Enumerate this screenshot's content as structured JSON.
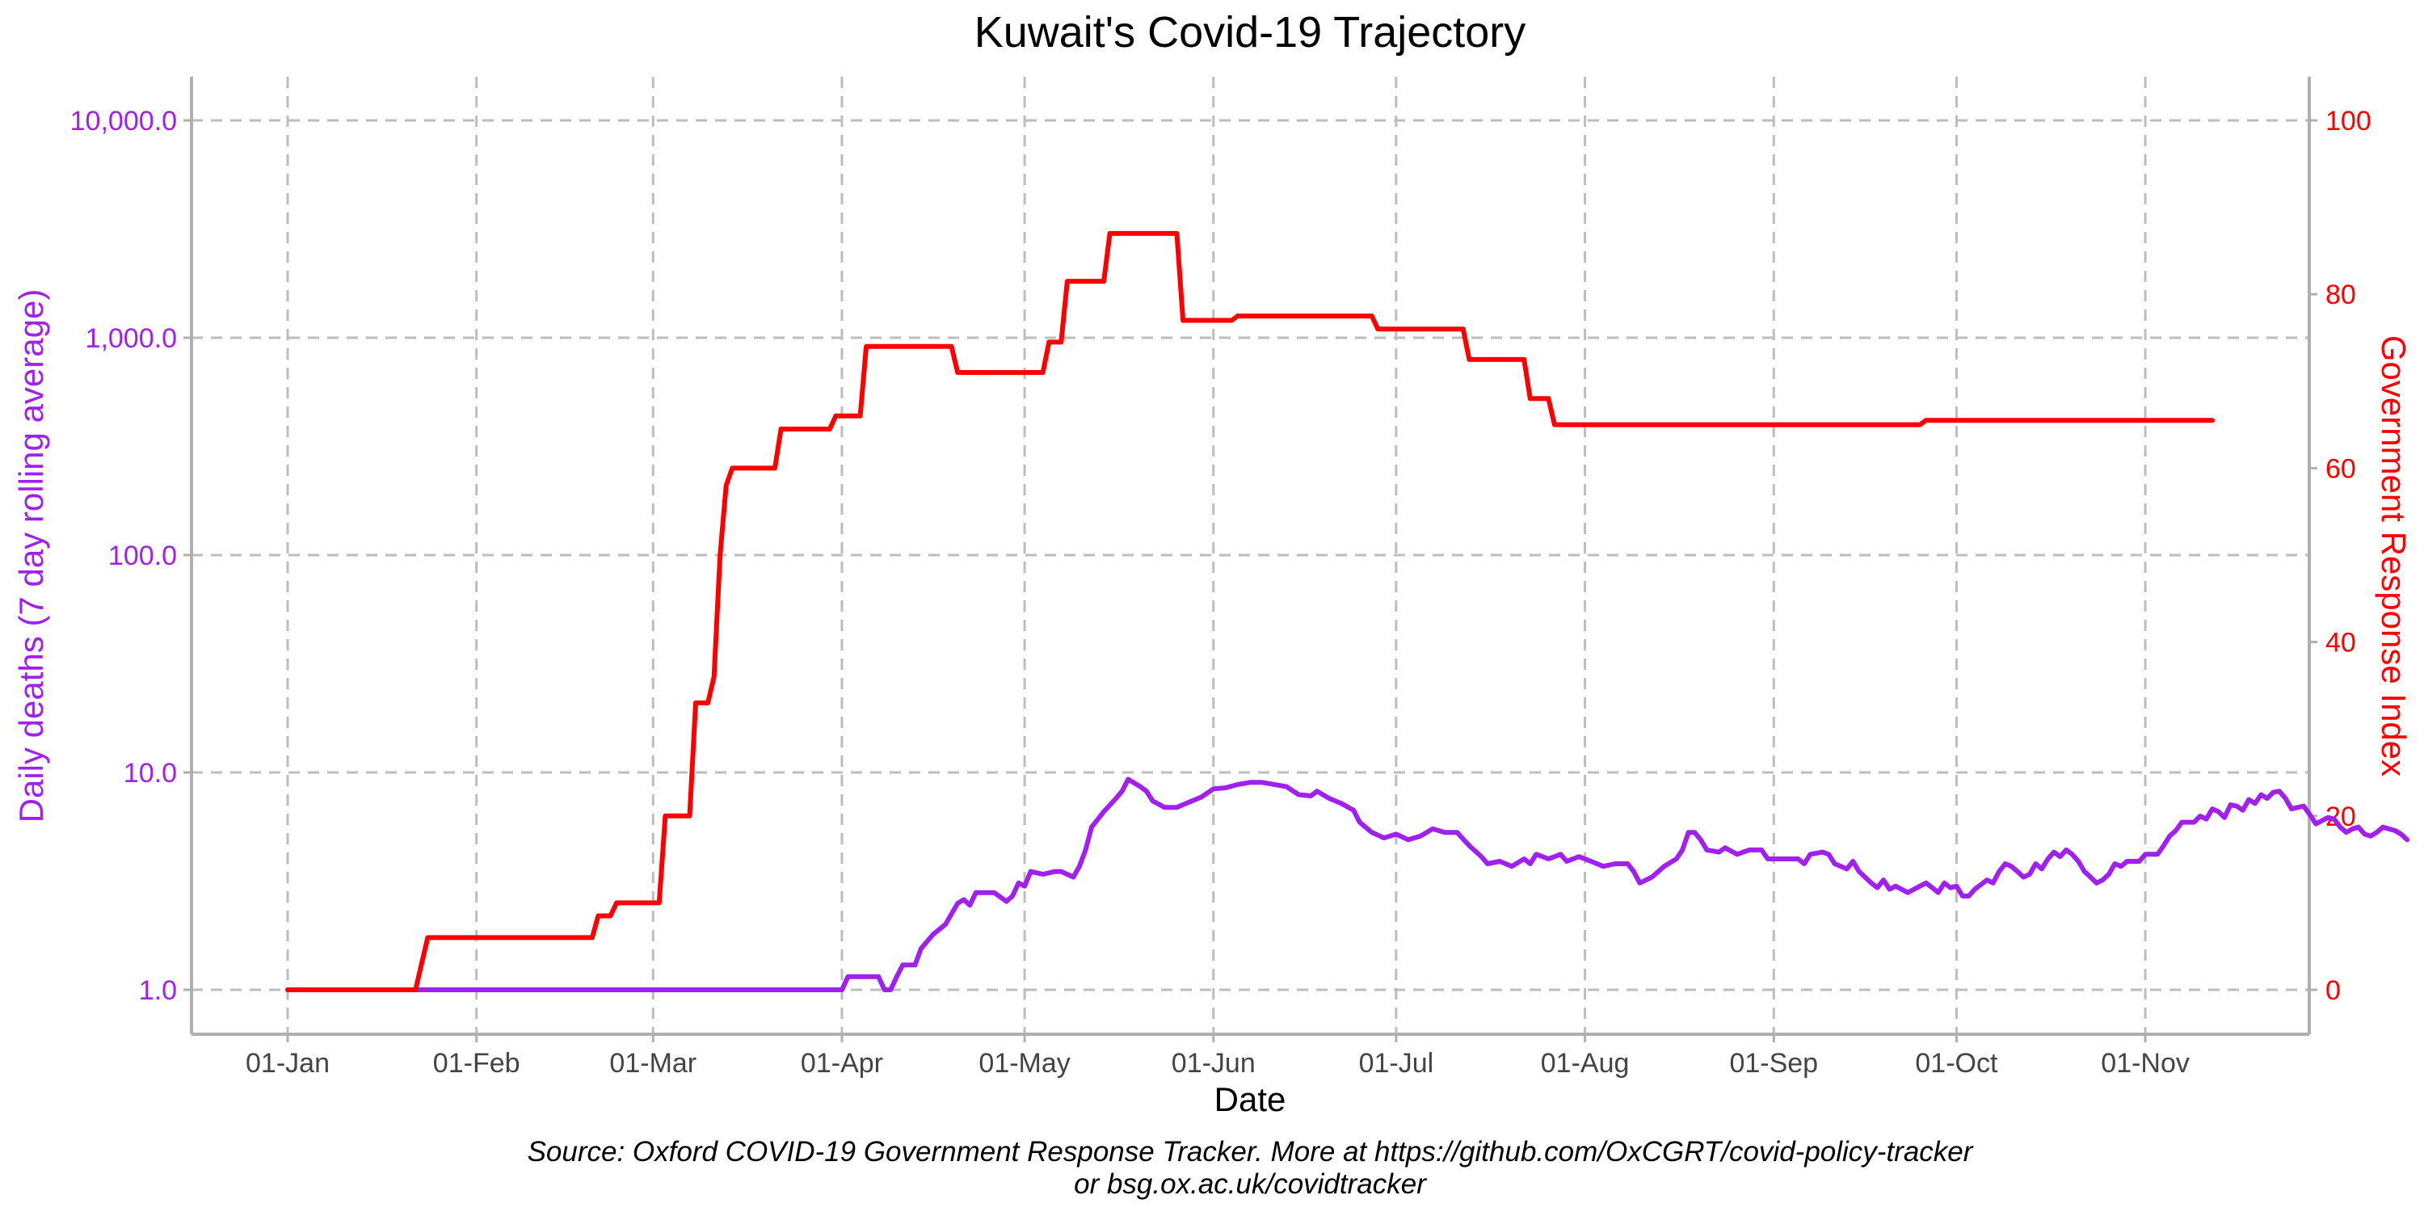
{
  "chart_data": {
    "type": "line",
    "title": "Kuwait's Covid-19 Trajectory",
    "xlabel": "Date",
    "ylabel_left": "Daily deaths (7 day rolling average)",
    "ylabel_right": "Government Response Index",
    "caption_line1": "Source: Oxford COVID-19 Government Response Tracker. More at https://github.com/OxCGRT/covid-policy-tracker",
    "caption_line2": "or bsg.ox.ac.uk/covidtracker",
    "x_ticks": [
      {
        "label": "01-Jan",
        "day": 0
      },
      {
        "label": "01-Feb",
        "day": 31
      },
      {
        "label": "01-Mar",
        "day": 60
      },
      {
        "label": "01-Apr",
        "day": 91
      },
      {
        "label": "01-May",
        "day": 121
      },
      {
        "label": "01-Jun",
        "day": 152
      },
      {
        "label": "01-Jul",
        "day": 182
      },
      {
        "label": "01-Aug",
        "day": 213
      },
      {
        "label": "01-Sep",
        "day": 244
      },
      {
        "label": "01-Oct",
        "day": 274
      },
      {
        "label": "01-Nov",
        "day": 305
      }
    ],
    "y_left_scale": "log10",
    "y_left_ticks": [
      {
        "label": "1.0",
        "value": 1
      },
      {
        "label": "10.0",
        "value": 10
      },
      {
        "label": "100.0",
        "value": 100
      },
      {
        "label": "1,000.0",
        "value": 1000
      },
      {
        "label": "10,000.0",
        "value": 10000
      }
    ],
    "y_right_ticks": [
      {
        "label": "0",
        "value": 0
      },
      {
        "label": "20",
        "value": 20
      },
      {
        "label": "40",
        "value": 40
      },
      {
        "label": "60",
        "value": 60
      },
      {
        "label": "80",
        "value": 80
      },
      {
        "label": "100",
        "value": 100
      }
    ],
    "grid": true,
    "series": [
      {
        "axis": "right",
        "color": "#ff0000",
        "points": [
          [
            0,
            0
          ],
          [
            21,
            0
          ],
          [
            22,
            3
          ],
          [
            23,
            6
          ],
          [
            50,
            6
          ],
          [
            51,
            8.5
          ],
          [
            53,
            8.5
          ],
          [
            54,
            10
          ],
          [
            61,
            10
          ],
          [
            62,
            20
          ],
          [
            66,
            20
          ],
          [
            67,
            33
          ],
          [
            69,
            33
          ],
          [
            70,
            36
          ],
          [
            71,
            50
          ],
          [
            72,
            58
          ],
          [
            73,
            60
          ],
          [
            80,
            60
          ],
          [
            81,
            64.5
          ],
          [
            89,
            64.5
          ],
          [
            90,
            66
          ],
          [
            94,
            66
          ],
          [
            95,
            74
          ],
          [
            109,
            74
          ],
          [
            110,
            71
          ],
          [
            124,
            71
          ],
          [
            125,
            74.5
          ],
          [
            127,
            74.5
          ],
          [
            128,
            81.5
          ],
          [
            134,
            81.5
          ],
          [
            135,
            87
          ],
          [
            146,
            87
          ],
          [
            147,
            77
          ],
          [
            155,
            77
          ],
          [
            156,
            77.5
          ],
          [
            178,
            77.5
          ],
          [
            179,
            76
          ],
          [
            193,
            76
          ],
          [
            194,
            72.5
          ],
          [
            203,
            72.5
          ],
          [
            204,
            68
          ],
          [
            207,
            68
          ],
          [
            208,
            65
          ],
          [
            268,
            65
          ],
          [
            269,
            65.5
          ],
          [
            316,
            65.5
          ]
        ]
      },
      {
        "axis": "left",
        "color": "#a020f0",
        "points": [
          [
            0,
            1
          ],
          [
            91,
            1
          ],
          [
            92,
            1.15
          ],
          [
            97,
            1.15
          ],
          [
            98,
            1
          ],
          [
            99,
            1
          ],
          [
            100,
            1.15
          ],
          [
            101,
            1.3
          ],
          [
            103,
            1.3
          ],
          [
            104,
            1.55
          ],
          [
            106,
            1.8
          ],
          [
            108,
            2.0
          ],
          [
            110,
            2.5
          ],
          [
            111,
            2.6
          ],
          [
            112,
            2.45
          ],
          [
            113,
            2.8
          ],
          [
            116,
            2.8
          ],
          [
            118,
            2.55
          ],
          [
            119,
            2.7
          ],
          [
            120,
            3.1
          ],
          [
            121,
            3.0
          ],
          [
            122,
            3.5
          ],
          [
            124,
            3.4
          ],
          [
            126,
            3.5
          ],
          [
            127,
            3.5
          ],
          [
            129,
            3.3
          ],
          [
            130,
            3.7
          ],
          [
            131,
            4.4
          ],
          [
            132,
            5.6
          ],
          [
            134,
            6.6
          ],
          [
            136,
            7.6
          ],
          [
            137,
            8.2
          ],
          [
            138,
            9.3
          ],
          [
            140,
            8.6
          ],
          [
            141,
            8.2
          ],
          [
            142,
            7.4
          ],
          [
            144,
            6.9
          ],
          [
            146,
            6.9
          ],
          [
            148,
            7.3
          ],
          [
            150,
            7.7
          ],
          [
            152,
            8.4
          ],
          [
            154,
            8.5
          ],
          [
            156,
            8.8
          ],
          [
            158,
            9.0
          ],
          [
            160,
            9.0
          ],
          [
            162,
            8.8
          ],
          [
            164,
            8.6
          ],
          [
            166,
            7.9
          ],
          [
            168,
            7.8
          ],
          [
            169,
            8.2
          ],
          [
            171,
            7.6
          ],
          [
            173,
            7.2
          ],
          [
            175,
            6.7
          ],
          [
            176,
            5.9
          ],
          [
            178,
            5.3
          ],
          [
            180,
            5.0
          ],
          [
            182,
            5.2
          ],
          [
            184,
            4.9
          ],
          [
            186,
            5.1
          ],
          [
            188,
            5.5
          ],
          [
            190,
            5.3
          ],
          [
            192,
            5.3
          ],
          [
            194,
            4.6
          ],
          [
            196,
            4.1
          ],
          [
            197,
            3.8
          ],
          [
            199,
            3.9
          ],
          [
            201,
            3.7
          ],
          [
            203,
            4.0
          ],
          [
            204,
            3.8
          ],
          [
            205,
            4.2
          ],
          [
            207,
            4.0
          ],
          [
            209,
            4.2
          ],
          [
            210,
            3.9
          ],
          [
            212,
            4.1
          ],
          [
            214,
            3.9
          ],
          [
            216,
            3.7
          ],
          [
            218,
            3.8
          ],
          [
            220,
            3.8
          ],
          [
            221,
            3.5
          ],
          [
            222,
            3.1
          ],
          [
            224,
            3.3
          ],
          [
            226,
            3.7
          ],
          [
            228,
            4.0
          ],
          [
            229,
            4.4
          ],
          [
            230,
            5.3
          ],
          [
            231,
            5.3
          ],
          [
            232,
            4.9
          ],
          [
            233,
            4.4
          ],
          [
            235,
            4.3
          ],
          [
            236,
            4.5
          ],
          [
            238,
            4.2
          ],
          [
            240,
            4.4
          ],
          [
            242,
            4.4
          ],
          [
            243,
            4.0
          ],
          [
            246,
            4.0
          ],
          [
            248,
            4.0
          ],
          [
            249,
            3.8
          ],
          [
            250,
            4.2
          ],
          [
            252,
            4.3
          ],
          [
            253,
            4.2
          ],
          [
            254,
            3.8
          ],
          [
            256,
            3.6
          ],
          [
            257,
            3.9
          ],
          [
            258,
            3.5
          ],
          [
            260,
            3.1
          ],
          [
            261,
            2.95
          ],
          [
            262,
            3.2
          ],
          [
            263,
            2.9
          ],
          [
            264,
            3.0
          ],
          [
            266,
            2.8
          ],
          [
            268,
            3.0
          ],
          [
            269,
            3.1
          ],
          [
            270,
            2.95
          ],
          [
            271,
            2.8
          ],
          [
            272,
            3.1
          ],
          [
            273,
            2.95
          ],
          [
            274,
            3.0
          ],
          [
            275,
            2.7
          ],
          [
            276,
            2.7
          ],
          [
            277,
            2.9
          ],
          [
            279,
            3.2
          ],
          [
            280,
            3.1
          ],
          [
            281,
            3.5
          ],
          [
            282,
            3.8
          ],
          [
            283,
            3.7
          ],
          [
            284,
            3.5
          ],
          [
            285,
            3.3
          ],
          [
            286,
            3.4
          ],
          [
            287,
            3.8
          ],
          [
            288,
            3.6
          ],
          [
            289,
            4.0
          ],
          [
            290,
            4.3
          ],
          [
            291,
            4.1
          ],
          [
            292,
            4.4
          ],
          [
            293,
            4.2
          ],
          [
            294,
            3.9
          ],
          [
            295,
            3.5
          ],
          [
            296,
            3.3
          ],
          [
            297,
            3.1
          ],
          [
            298,
            3.2
          ],
          [
            299,
            3.4
          ],
          [
            300,
            3.8
          ],
          [
            301,
            3.7
          ],
          [
            302,
            3.9
          ],
          [
            304,
            3.9
          ],
          [
            305,
            4.2
          ],
          [
            307,
            4.2
          ],
          [
            308,
            4.6
          ],
          [
            309,
            5.1
          ],
          [
            310,
            5.4
          ],
          [
            311,
            5.9
          ],
          [
            313,
            5.9
          ],
          [
            314,
            6.3
          ],
          [
            315,
            6.1
          ],
          [
            316,
            6.8
          ],
          [
            317,
            6.6
          ],
          [
            318,
            6.2
          ],
          [
            319,
            7.1
          ],
          [
            320,
            7.0
          ],
          [
            321,
            6.7
          ],
          [
            322,
            7.5
          ],
          [
            323,
            7.2
          ],
          [
            324,
            7.9
          ],
          [
            325,
            7.6
          ],
          [
            326,
            8.1
          ],
          [
            327,
            8.2
          ],
          [
            328,
            7.6
          ],
          [
            329,
            6.8
          ],
          [
            330,
            6.9
          ],
          [
            331,
            7.0
          ],
          [
            332,
            6.4
          ],
          [
            333,
            5.8
          ],
          [
            334,
            6.0
          ],
          [
            335,
            6.2
          ],
          [
            336,
            6.1
          ],
          [
            337,
            5.6
          ],
          [
            338,
            5.3
          ],
          [
            339,
            5.5
          ],
          [
            340,
            5.6
          ],
          [
            341,
            5.2
          ],
          [
            342,
            5.1
          ],
          [
            343,
            5.3
          ],
          [
            344,
            5.6
          ],
          [
            345,
            5.5
          ],
          [
            346,
            5.4
          ],
          [
            347,
            5.2
          ],
          [
            348,
            4.9
          ]
        ]
      }
    ]
  }
}
